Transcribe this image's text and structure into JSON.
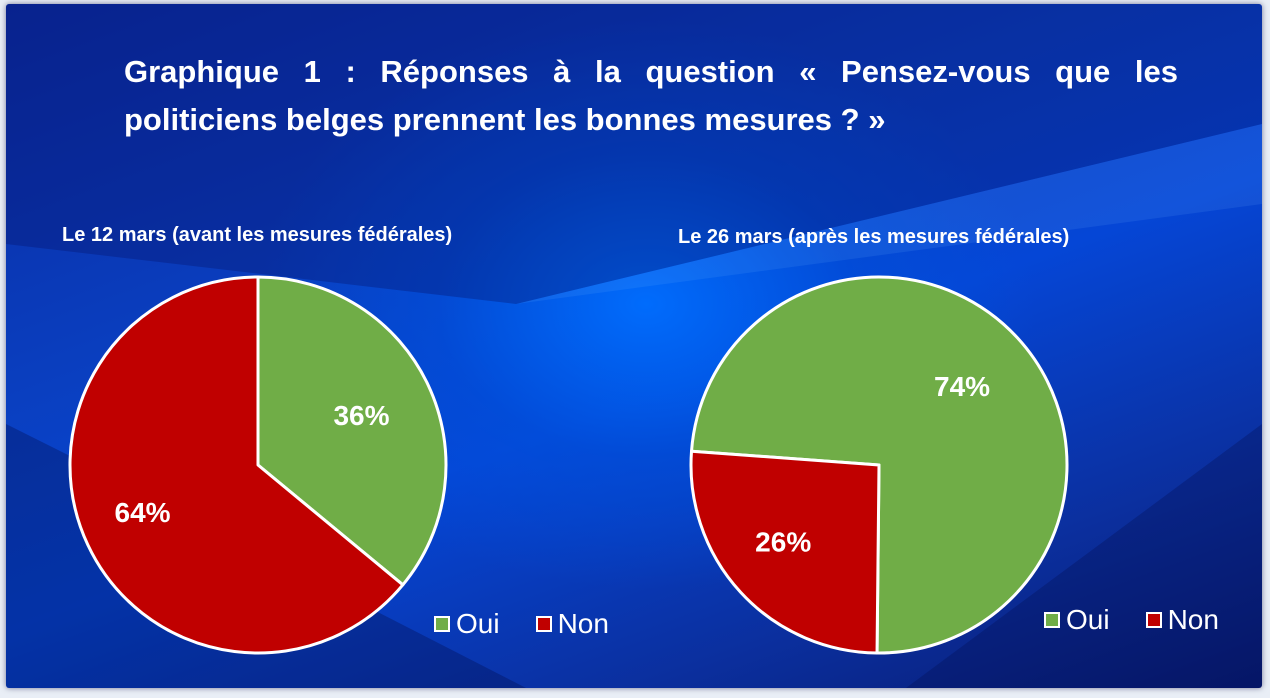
{
  "title": "Graphique 1 : Réponses à la question « Pensez-vous que les politiciens belges prennent les bonnes mesures ? »",
  "colors": {
    "oui": "#70ad47",
    "non": "#c00000",
    "text": "#ffffff"
  },
  "chart_data": [
    {
      "type": "pie",
      "subtitle": "Le 12 mars (avant les mesures fédérales)",
      "slices": [
        {
          "label": "Oui",
          "value": 36,
          "display": "36%"
        },
        {
          "label": "Non",
          "value": 64,
          "display": "64%"
        }
      ],
      "legend": [
        "Oui",
        "Non"
      ],
      "legend_position": "bottom-right"
    },
    {
      "type": "pie",
      "subtitle": "Le 26 mars (après les mesures fédérales)",
      "slices": [
        {
          "label": "Oui",
          "value": 74,
          "display": "74%"
        },
        {
          "label": "Non",
          "value": 26,
          "display": "26%"
        }
      ],
      "legend": [
        "Oui",
        "Non"
      ],
      "legend_position": "bottom-right"
    }
  ]
}
